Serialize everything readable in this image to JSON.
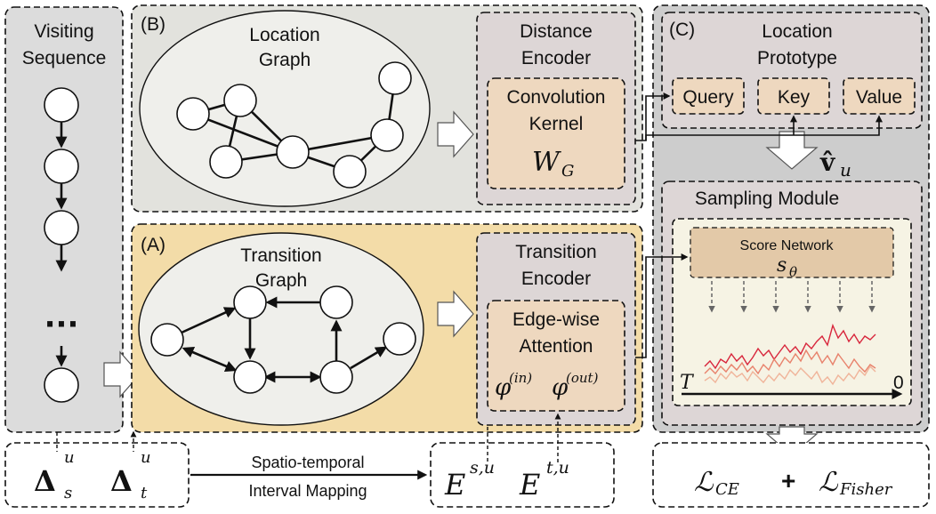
{
  "visiting_sequence": {
    "title_line1": "Visiting",
    "title_line2": "Sequence",
    "ellipsis": "···"
  },
  "panel_b": {
    "tag": "(B)",
    "graph_label_line1": "Location",
    "graph_label_line2": "Graph",
    "encoder_line1": "Distance",
    "encoder_line2": "Encoder",
    "kernel_line1": "Convolution",
    "kernel_line2": "Kernel",
    "kernel_symbol": "W",
    "kernel_sub": "G"
  },
  "panel_a": {
    "tag": "(A)",
    "graph_label_line1": "Transition",
    "graph_label_line2": "Graph",
    "encoder_line1": "Transition",
    "encoder_line2": "Encoder",
    "attn_line1": "Edge-wise",
    "attn_line2": "Attention",
    "phi_in": "(in)",
    "phi_out": "(out)",
    "phi": "φ"
  },
  "panel_c": {
    "tag": "(C)",
    "proto_line1": "Location",
    "proto_line2": "Prototype",
    "query": "Query",
    "key": "Key",
    "value": "Value",
    "v_hat": "v̂",
    "v_sub": "u",
    "sampling_title": "Sampling Module",
    "score_network": "Score Network",
    "s_theta": "s",
    "s_theta_sub": "θ",
    "axis_start": "T",
    "axis_end": "0"
  },
  "bottom": {
    "delta": "Δ",
    "delta_s_sub": "s",
    "delta_t_sub": "t",
    "sup_u": "u",
    "mapping_line1": "Spatio-temporal",
    "mapping_line2": "Interval Mapping",
    "E": "E",
    "E_s_sup": "s,u",
    "E_t_sup": "t,u",
    "loss_L": "ℒ",
    "loss_ce": "CE",
    "plus": "+",
    "loss_fisher": "Fisher"
  },
  "colors": {
    "gray_panel": "#dcdcdc",
    "panel_b_bg": "#e2e2dd",
    "panel_a_bg": "#f3dca8",
    "encoder_bg": "#ddd6d6",
    "inner_box": "#eed8bf",
    "ellipse": "#efefeb",
    "sampling_plot_bg": "#f6f3e4",
    "trace_1": "#d8263c",
    "trace_2": "#e8826c",
    "trace_3": "#f0b49a"
  }
}
